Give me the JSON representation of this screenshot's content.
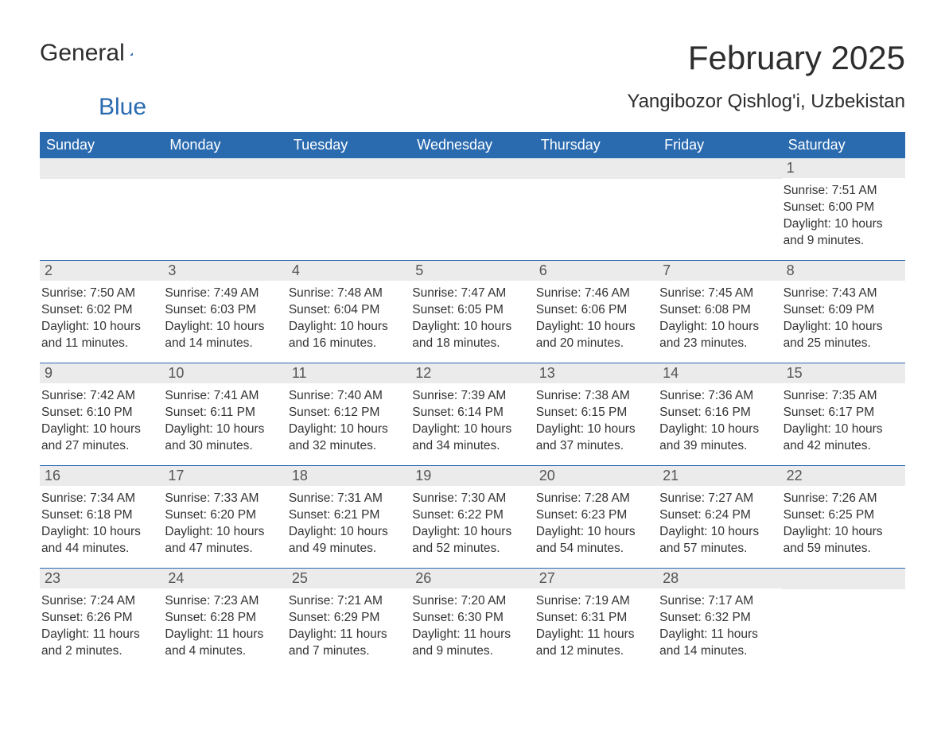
{
  "colors": {
    "header_background": "#2a6bb0",
    "header_text": "#ffffff",
    "day_bar_background": "#ebebeb",
    "day_bar_text": "#555555",
    "body_text": "#333333",
    "page_background": "#ffffff",
    "week_separator": "#2a6bb0",
    "logo_primary": "#2d2d2d",
    "logo_accent": "#2a6bb0"
  },
  "typography": {
    "month_title_fontsize": 42,
    "location_fontsize": 24,
    "weekday_fontsize": 18,
    "daynum_fontsize": 18,
    "daytext_fontsize": 15.5,
    "logo_fontsize": 30,
    "font_family": "Segoe UI"
  },
  "logo": {
    "word1": "General",
    "word2": "Blue"
  },
  "header": {
    "month_title": "February 2025",
    "location": "Yangibozor Qishlog'i, Uzbekistan"
  },
  "weekdays": [
    "Sunday",
    "Monday",
    "Tuesday",
    "Wednesday",
    "Thursday",
    "Friday",
    "Saturday"
  ],
  "calendar": {
    "type": "table",
    "structure": "month_grid_7cols_5rows",
    "start_day_index": 6,
    "days": [
      {
        "n": "1",
        "sunrise": "Sunrise: 7:51 AM",
        "sunset": "Sunset: 6:00 PM",
        "daylight": "Daylight: 10 hours and 9 minutes."
      },
      {
        "n": "2",
        "sunrise": "Sunrise: 7:50 AM",
        "sunset": "Sunset: 6:02 PM",
        "daylight": "Daylight: 10 hours and 11 minutes."
      },
      {
        "n": "3",
        "sunrise": "Sunrise: 7:49 AM",
        "sunset": "Sunset: 6:03 PM",
        "daylight": "Daylight: 10 hours and 14 minutes."
      },
      {
        "n": "4",
        "sunrise": "Sunrise: 7:48 AM",
        "sunset": "Sunset: 6:04 PM",
        "daylight": "Daylight: 10 hours and 16 minutes."
      },
      {
        "n": "5",
        "sunrise": "Sunrise: 7:47 AM",
        "sunset": "Sunset: 6:05 PM",
        "daylight": "Daylight: 10 hours and 18 minutes."
      },
      {
        "n": "6",
        "sunrise": "Sunrise: 7:46 AM",
        "sunset": "Sunset: 6:06 PM",
        "daylight": "Daylight: 10 hours and 20 minutes."
      },
      {
        "n": "7",
        "sunrise": "Sunrise: 7:45 AM",
        "sunset": "Sunset: 6:08 PM",
        "daylight": "Daylight: 10 hours and 23 minutes."
      },
      {
        "n": "8",
        "sunrise": "Sunrise: 7:43 AM",
        "sunset": "Sunset: 6:09 PM",
        "daylight": "Daylight: 10 hours and 25 minutes."
      },
      {
        "n": "9",
        "sunrise": "Sunrise: 7:42 AM",
        "sunset": "Sunset: 6:10 PM",
        "daylight": "Daylight: 10 hours and 27 minutes."
      },
      {
        "n": "10",
        "sunrise": "Sunrise: 7:41 AM",
        "sunset": "Sunset: 6:11 PM",
        "daylight": "Daylight: 10 hours and 30 minutes."
      },
      {
        "n": "11",
        "sunrise": "Sunrise: 7:40 AM",
        "sunset": "Sunset: 6:12 PM",
        "daylight": "Daylight: 10 hours and 32 minutes."
      },
      {
        "n": "12",
        "sunrise": "Sunrise: 7:39 AM",
        "sunset": "Sunset: 6:14 PM",
        "daylight": "Daylight: 10 hours and 34 minutes."
      },
      {
        "n": "13",
        "sunrise": "Sunrise: 7:38 AM",
        "sunset": "Sunset: 6:15 PM",
        "daylight": "Daylight: 10 hours and 37 minutes."
      },
      {
        "n": "14",
        "sunrise": "Sunrise: 7:36 AM",
        "sunset": "Sunset: 6:16 PM",
        "daylight": "Daylight: 10 hours and 39 minutes."
      },
      {
        "n": "15",
        "sunrise": "Sunrise: 7:35 AM",
        "sunset": "Sunset: 6:17 PM",
        "daylight": "Daylight: 10 hours and 42 minutes."
      },
      {
        "n": "16",
        "sunrise": "Sunrise: 7:34 AM",
        "sunset": "Sunset: 6:18 PM",
        "daylight": "Daylight: 10 hours and 44 minutes."
      },
      {
        "n": "17",
        "sunrise": "Sunrise: 7:33 AM",
        "sunset": "Sunset: 6:20 PM",
        "daylight": "Daylight: 10 hours and 47 minutes."
      },
      {
        "n": "18",
        "sunrise": "Sunrise: 7:31 AM",
        "sunset": "Sunset: 6:21 PM",
        "daylight": "Daylight: 10 hours and 49 minutes."
      },
      {
        "n": "19",
        "sunrise": "Sunrise: 7:30 AM",
        "sunset": "Sunset: 6:22 PM",
        "daylight": "Daylight: 10 hours and 52 minutes."
      },
      {
        "n": "20",
        "sunrise": "Sunrise: 7:28 AM",
        "sunset": "Sunset: 6:23 PM",
        "daylight": "Daylight: 10 hours and 54 minutes."
      },
      {
        "n": "21",
        "sunrise": "Sunrise: 7:27 AM",
        "sunset": "Sunset: 6:24 PM",
        "daylight": "Daylight: 10 hours and 57 minutes."
      },
      {
        "n": "22",
        "sunrise": "Sunrise: 7:26 AM",
        "sunset": "Sunset: 6:25 PM",
        "daylight": "Daylight: 10 hours and 59 minutes."
      },
      {
        "n": "23",
        "sunrise": "Sunrise: 7:24 AM",
        "sunset": "Sunset: 6:26 PM",
        "daylight": "Daylight: 11 hours and 2 minutes."
      },
      {
        "n": "24",
        "sunrise": "Sunrise: 7:23 AM",
        "sunset": "Sunset: 6:28 PM",
        "daylight": "Daylight: 11 hours and 4 minutes."
      },
      {
        "n": "25",
        "sunrise": "Sunrise: 7:21 AM",
        "sunset": "Sunset: 6:29 PM",
        "daylight": "Daylight: 11 hours and 7 minutes."
      },
      {
        "n": "26",
        "sunrise": "Sunrise: 7:20 AM",
        "sunset": "Sunset: 6:30 PM",
        "daylight": "Daylight: 11 hours and 9 minutes."
      },
      {
        "n": "27",
        "sunrise": "Sunrise: 7:19 AM",
        "sunset": "Sunset: 6:31 PM",
        "daylight": "Daylight: 11 hours and 12 minutes."
      },
      {
        "n": "28",
        "sunrise": "Sunrise: 7:17 AM",
        "sunset": "Sunset: 6:32 PM",
        "daylight": "Daylight: 11 hours and 14 minutes."
      }
    ]
  }
}
